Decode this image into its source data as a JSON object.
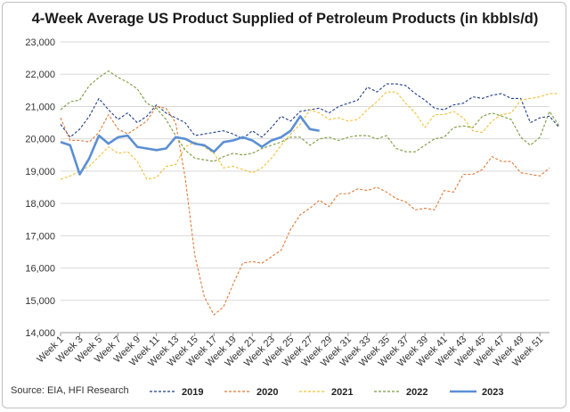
{
  "chart_data": {
    "type": "line",
    "title": "4-Week Average US Product Supplied of Petroleum Products (in kbbls/d)",
    "source": "Source: EIA, HFI Research",
    "xlabel": "",
    "ylabel": "",
    "ylim": [
      14000,
      23000
    ],
    "yticks": [
      14000,
      15000,
      16000,
      17000,
      18000,
      19000,
      20000,
      21000,
      22000,
      23000
    ],
    "ytick_labels": [
      "14,000",
      "15,000",
      "16,000",
      "17,000",
      "18,000",
      "19,000",
      "20,000",
      "21,000",
      "22,000",
      "23,000"
    ],
    "x_tick_labels": [
      "Week 1",
      "Week 3",
      "Week 5",
      "Week 7",
      "Week 9",
      "Week 11",
      "Week 13",
      "Week 15",
      "Week 17",
      "Week 19",
      "Week 21",
      "Week 23",
      "Week 25",
      "Week 27",
      "Week 29",
      "Week 31",
      "Week 33",
      "Week 35",
      "Week 37",
      "Week 39",
      "Week 41",
      "Week 43",
      "Week 45",
      "Week 47",
      "Week 49",
      "Week 51"
    ],
    "grid": "horizontal",
    "legend_position": "bottom",
    "series": [
      {
        "name": "2019",
        "color": "#1f3c88",
        "dash": "dash",
        "values": [
          20450,
          20050,
          20300,
          20700,
          21250,
          20900,
          20600,
          20800,
          20500,
          20700,
          21050,
          20800,
          20650,
          20500,
          20100,
          20150,
          20200,
          20250,
          20150,
          20000,
          20250,
          20050,
          20350,
          20700,
          20550,
          20850,
          20900,
          20950,
          20800,
          21000,
          21100,
          21200,
          21600,
          21450,
          21700,
          21700,
          21650,
          21400,
          21200,
          20950,
          20900,
          21050,
          21100,
          21300,
          21250,
          21350,
          21400,
          21250,
          21250,
          20500,
          20650,
          20700,
          20350
        ]
      },
      {
        "name": "2020",
        "color": "#e07b39",
        "dash": "dash",
        "values": [
          20650,
          19950,
          19950,
          19900,
          20200,
          20750,
          20300,
          20150,
          20350,
          20550,
          21000,
          20950,
          20500,
          18800,
          16400,
          15100,
          14550,
          14800,
          15500,
          16150,
          16200,
          16150,
          16350,
          16550,
          17200,
          17650,
          17850,
          18100,
          17900,
          18300,
          18300,
          18450,
          18400,
          18500,
          18350,
          18150,
          18050,
          17800,
          17850,
          17800,
          18400,
          18350,
          18900,
          18900,
          19050,
          19450,
          19300,
          19300,
          18950,
          18900,
          18850,
          19100
        ]
      },
      {
        "name": "2021",
        "color": "#f2c037",
        "dash": "dash",
        "values": [
          18750,
          18850,
          19000,
          19150,
          19450,
          19750,
          19550,
          19600,
          19300,
          18750,
          18800,
          19150,
          19200,
          19750,
          19900,
          19750,
          19550,
          19100,
          19150,
          19050,
          18950,
          19100,
          19400,
          19800,
          20150,
          20450,
          20900,
          20800,
          20600,
          20650,
          20550,
          20600,
          20900,
          21150,
          21450,
          21450,
          21100,
          20800,
          20350,
          20750,
          20750,
          20850,
          20650,
          20250,
          20200,
          20550,
          20750,
          20800,
          21200,
          21250,
          21300,
          21400,
          21400
        ]
      },
      {
        "name": "2022",
        "color": "#7a9a3c",
        "dash": "dash",
        "values": [
          20900,
          21150,
          21200,
          21650,
          21900,
          22100,
          21900,
          21750,
          21550,
          21100,
          20950,
          20600,
          20100,
          19650,
          19400,
          19350,
          19300,
          19450,
          19550,
          19500,
          19550,
          19700,
          19800,
          19900,
          20050,
          20050,
          19800,
          20000,
          20050,
          19950,
          20050,
          20100,
          20100,
          20000,
          20100,
          19700,
          19600,
          19600,
          19800,
          20000,
          20050,
          20350,
          20400,
          20350,
          20700,
          20800,
          20700,
          20600,
          20050,
          19800,
          20050,
          20850,
          20400
        ]
      },
      {
        "name": "2023",
        "color": "#5b8fd4",
        "dash": "solid",
        "values": [
          19900,
          19800,
          18900,
          19400,
          20100,
          19850,
          20050,
          20100,
          19750,
          19700,
          19650,
          19700,
          20050,
          20000,
          19850,
          19800,
          19600,
          19900,
          19950,
          20050,
          19950,
          19750,
          19950,
          20050,
          20250,
          20700,
          20300,
          20250
        ]
      }
    ]
  }
}
